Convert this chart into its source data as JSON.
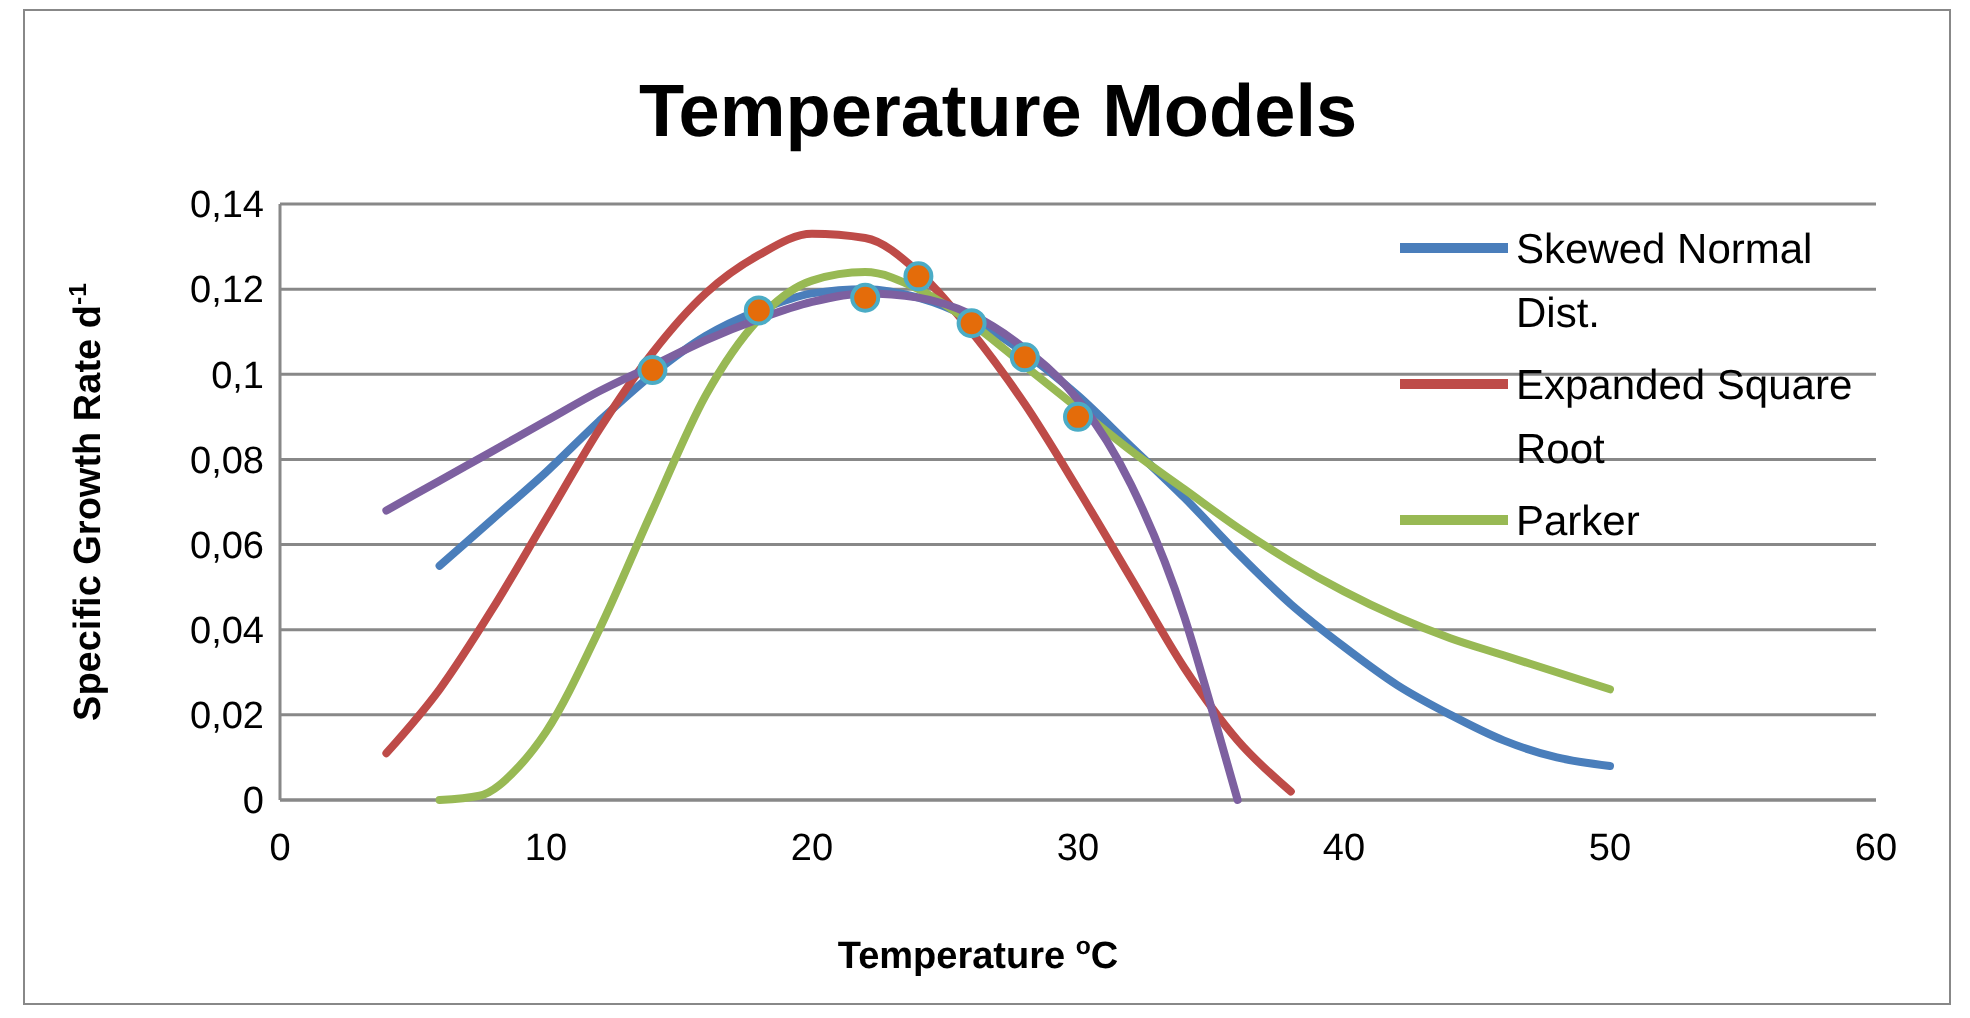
{
  "chart_data": {
    "type": "line",
    "title": "Temperature Models",
    "xlabel": "Temperature $^{o}$C",
    "ylabel": "Specific Growth Rate d$^{-1}$",
    "xlim": [
      0,
      60
    ],
    "xticks": [
      0,
      10,
      20,
      30,
      40,
      50,
      60
    ],
    "ylim": [
      0,
      0.14
    ],
    "yticks": [
      {
        "value": 0,
        "label": "0"
      },
      {
        "value": 0.02,
        "label": "0,02"
      },
      {
        "value": 0.04,
        "label": "0,04"
      },
      {
        "value": 0.06,
        "label": "0,06"
      },
      {
        "value": 0.08,
        "label": "0,08"
      },
      {
        "value": 0.1,
        "label": "0,1"
      },
      {
        "value": 0.12,
        "label": "0,12"
      },
      {
        "value": 0.14,
        "label": "0,14"
      }
    ],
    "grid": "y",
    "legend": "top right",
    "marker": "none",
    "line_style": "solid",
    "series": [
      {
        "name": "Skewed Normal Dist.",
        "color": "#4a7ebb",
        "x": [
          6,
          8,
          10,
          12,
          14,
          16,
          18,
          20,
          22,
          24,
          26,
          28,
          30,
          32,
          34,
          36,
          38,
          40,
          42,
          44,
          46,
          48,
          50
        ],
        "values": [
          0.055,
          0.066,
          0.077,
          0.089,
          0.1,
          0.109,
          0.115,
          0.119,
          0.12,
          0.118,
          0.113,
          0.105,
          0.095,
          0.083,
          0.071,
          0.058,
          0.046,
          0.036,
          0.027,
          0.02,
          0.014,
          0.01,
          0.008
        ]
      },
      {
        "name": "Expanded Square Root",
        "color": "#be4b48",
        "x": [
          4,
          6,
          8,
          10,
          12,
          14,
          16,
          18,
          20,
          22,
          24,
          26,
          28,
          30,
          32,
          34,
          36,
          38
        ],
        "values": [
          0.011,
          0.026,
          0.045,
          0.066,
          0.087,
          0.105,
          0.119,
          0.128,
          0.133,
          0.132,
          0.124,
          0.11,
          0.093,
          0.073,
          0.052,
          0.031,
          0.014,
          0.002
        ]
      },
      {
        "name": "Parker",
        "color": "#98b954",
        "x": [
          6,
          7.5,
          9,
          10,
          12,
          14,
          16,
          18,
          20,
          22,
          24,
          26,
          28,
          30,
          32,
          34,
          36,
          38,
          40,
          42,
          44,
          46,
          48,
          50
        ],
        "values": [
          0,
          0.001,
          0.008,
          0.016,
          0.04,
          0.068,
          0.095,
          0.113,
          0.122,
          0.124,
          0.12,
          0.112,
          0.102,
          0.092,
          0.082,
          0.073,
          0.064,
          0.056,
          0.049,
          0.043,
          0.038,
          0.034,
          0.03,
          0.026
        ]
      },
      {
        "color": "#7d60a0",
        "x": [
          4,
          6,
          8,
          10,
          12,
          14,
          16,
          18,
          20,
          22,
          24,
          26,
          28,
          30,
          32,
          34,
          35,
          36
        ],
        "values": [
          0.068,
          0.075,
          0.082,
          0.089,
          0.096,
          0.102,
          0.108,
          0.113,
          0.117,
          0.119,
          0.118,
          0.114,
          0.106,
          0.094,
          0.074,
          0.043,
          0.022,
          0
        ]
      },
      {
        "type": "scatter",
        "marker": "circle",
        "color": "#e46c0a",
        "x": [
          14,
          18,
          22,
          24,
          26,
          28,
          30
        ],
        "values": [
          0.101,
          0.115,
          0.118,
          0.123,
          0.112,
          0.104,
          0.09
        ]
      }
    ]
  }
}
